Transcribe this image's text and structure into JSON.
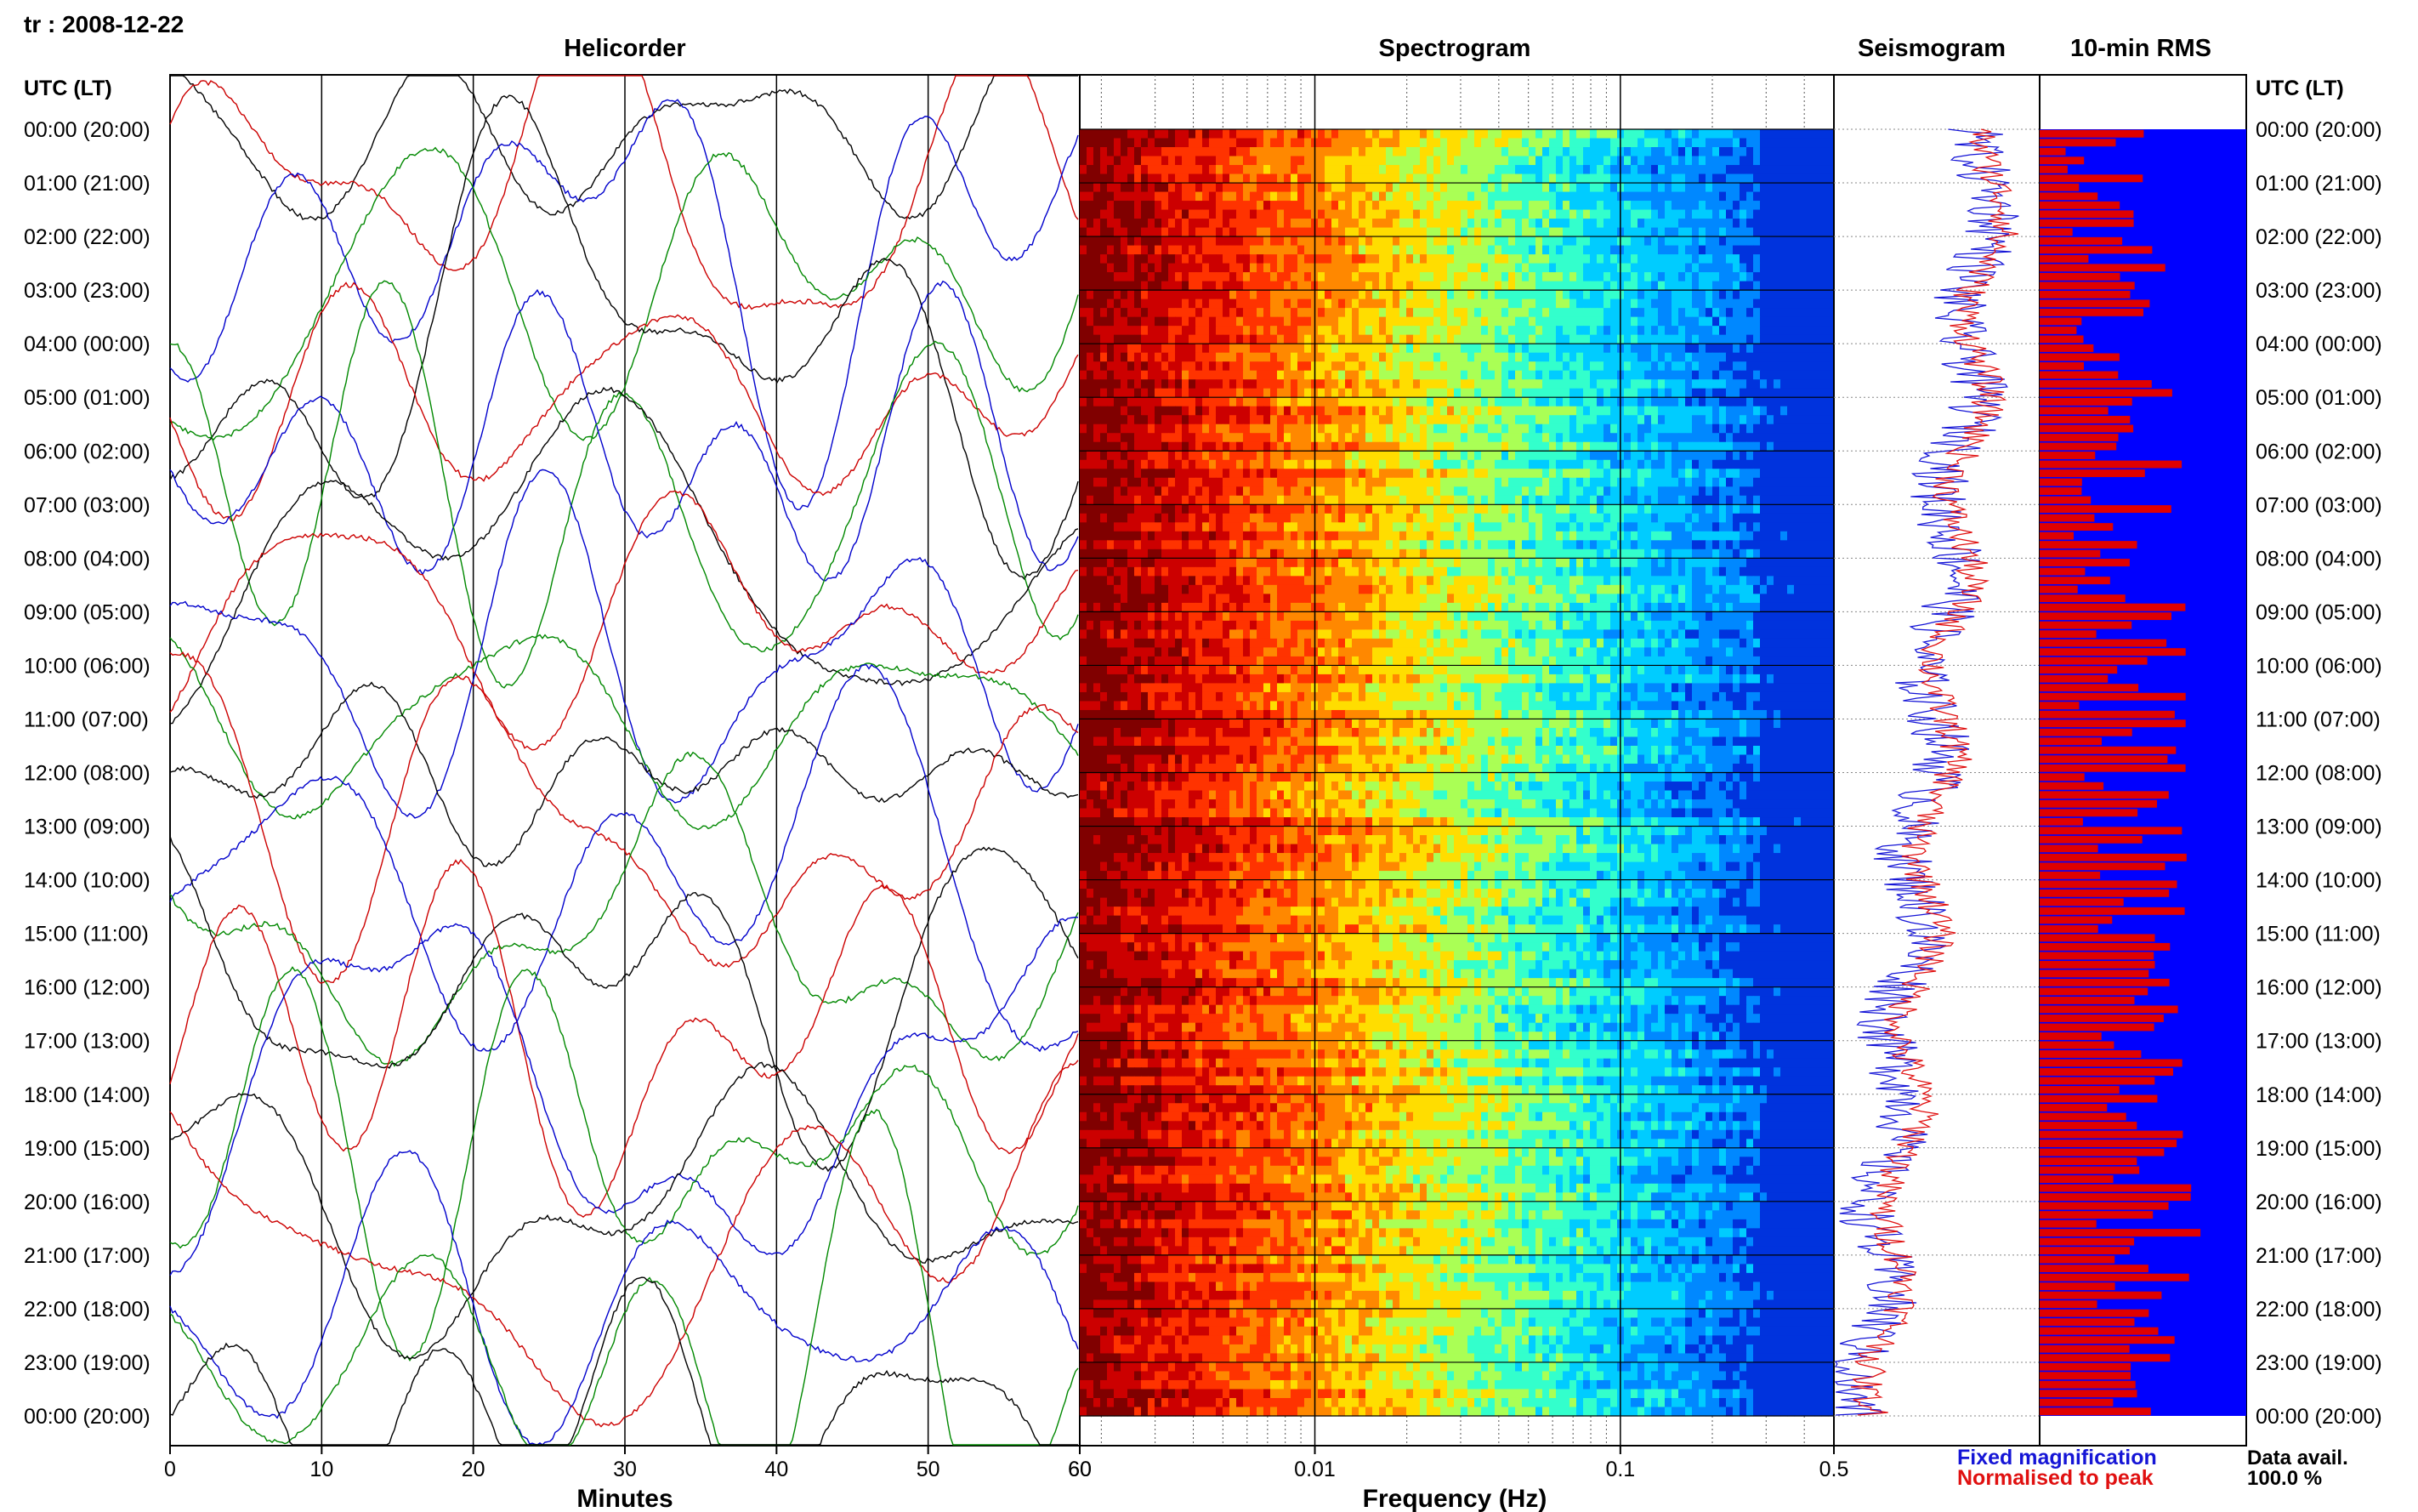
{
  "header": {
    "station_date": "tr : 2008-12-22"
  },
  "panels": {
    "helicorder": "Helicorder",
    "spectrogram": "Spectrogram",
    "seismogram": "Seismogram",
    "rms": "10-min RMS"
  },
  "axes": {
    "time_label_left": "UTC (LT)",
    "time_label_right": "UTC (LT)",
    "helicorder_xlabel": "Minutes",
    "spectrogram_xlabel": "Frequency (Hz)"
  },
  "legend": {
    "fixed": "Fixed magnification",
    "normalised": "Normalised to peak",
    "data_avail_label": "Data avail.",
    "data_avail_value": "100.0 %"
  },
  "colors": {
    "fixed": "#1515d6",
    "normalised": "#e01010",
    "rms_bg": "#0000ff",
    "rms_bar": "#e00000"
  },
  "chart_data": {
    "type": "heatmap",
    "time_ticks": [
      "00:00 (20:00)",
      "01:00 (21:00)",
      "02:00 (22:00)",
      "03:00 (23:00)",
      "04:00 (00:00)",
      "05:00 (01:00)",
      "06:00 (02:00)",
      "07:00 (03:00)",
      "08:00 (04:00)",
      "09:00 (05:00)",
      "10:00 (06:00)",
      "11:00 (07:00)",
      "12:00 (08:00)",
      "13:00 (09:00)",
      "14:00 (10:00)",
      "15:00 (11:00)",
      "16:00 (12:00)",
      "17:00 (13:00)",
      "18:00 (14:00)",
      "19:00 (15:00)",
      "20:00 (16:00)",
      "21:00 (17:00)",
      "22:00 (18:00)",
      "23:00 (19:00)",
      "00:00 (20:00)"
    ],
    "helicorder": {
      "xlim": [
        0,
        60
      ],
      "xticks": [
        "0",
        "10",
        "20",
        "30",
        "40",
        "50",
        "60"
      ],
      "trace_colors": [
        "#000000",
        "#cc0000",
        "#0000cc",
        "#008800"
      ]
    },
    "spectrogram": {
      "scale": "log",
      "xlim": [
        0.0017,
        0.5
      ],
      "xticks": [
        "60",
        "0.01",
        "0.1",
        "0.5"
      ],
      "colormap": [
        "#800000",
        "#cc0000",
        "#ff3300",
        "#ff8800",
        "#ffdd00",
        "#aaff55",
        "#33ffcc",
        "#00ccff",
        "#0088ff",
        "#0033dd"
      ]
    },
    "seismogram": {
      "series": [
        "Fixed magnification",
        "Normalised to peak"
      ]
    },
    "rms": {
      "bins_per_hour": 6,
      "hours": 24
    }
  }
}
